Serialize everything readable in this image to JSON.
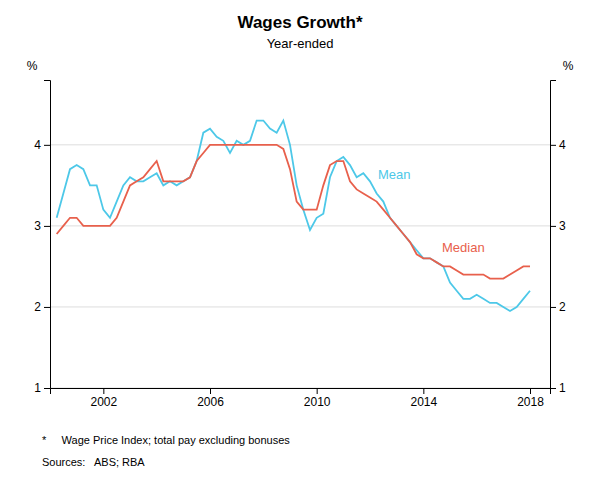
{
  "chart_data": {
    "type": "line",
    "title": "Wages Growth*",
    "subtitle": "Year-ended",
    "ylabel": "%",
    "y2label": "%",
    "footnote": "*     Wage Price Index; total pay excluding bonuses",
    "source": "Sources:   ABS; RBA",
    "xlim": [
      2000.0,
      2018.75
    ],
    "xticks": [
      2002,
      2006,
      2010,
      2014,
      2018
    ],
    "ylim": [
      1,
      4.8
    ],
    "yticks": [
      1,
      2,
      3,
      4
    ],
    "y2lim": [
      1,
      4.8
    ],
    "y2ticks": [
      1,
      2,
      3,
      4
    ],
    "grid": true,
    "x": [
      2000.25,
      2000.5,
      2000.75,
      2001.0,
      2001.25,
      2001.5,
      2001.75,
      2002.0,
      2002.25,
      2002.5,
      2002.75,
      2003.0,
      2003.25,
      2003.5,
      2003.75,
      2004.0,
      2004.25,
      2004.5,
      2004.75,
      2005.0,
      2005.25,
      2005.5,
      2005.75,
      2006.0,
      2006.25,
      2006.5,
      2006.75,
      2007.0,
      2007.25,
      2007.5,
      2007.75,
      2008.0,
      2008.25,
      2008.5,
      2008.75,
      2009.0,
      2009.25,
      2009.5,
      2009.75,
      2010.0,
      2010.25,
      2010.5,
      2010.75,
      2011.0,
      2011.25,
      2011.5,
      2011.75,
      2012.0,
      2012.25,
      2012.5,
      2012.75,
      2013.0,
      2013.25,
      2013.5,
      2013.75,
      2014.0,
      2014.25,
      2014.5,
      2014.75,
      2015.0,
      2015.25,
      2015.5,
      2015.75,
      2016.0,
      2016.25,
      2016.5,
      2016.75,
      2017.0,
      2017.25,
      2017.5,
      2017.75,
      2018.0
    ],
    "series": [
      {
        "name": "Mean",
        "color": "#4DC8E8",
        "values": [
          3.1,
          3.4,
          3.7,
          3.75,
          3.7,
          3.5,
          3.5,
          3.2,
          3.1,
          3.3,
          3.5,
          3.6,
          3.55,
          3.55,
          3.6,
          3.65,
          3.5,
          3.55,
          3.5,
          3.55,
          3.6,
          3.8,
          4.15,
          4.2,
          4.1,
          4.05,
          3.9,
          4.05,
          4.0,
          4.05,
          4.3,
          4.3,
          4.2,
          4.15,
          4.3,
          4.0,
          3.5,
          3.2,
          2.95,
          3.1,
          3.15,
          3.6,
          3.8,
          3.85,
          3.75,
          3.6,
          3.65,
          3.55,
          3.4,
          3.3,
          3.1,
          3.0,
          2.9,
          2.8,
          2.7,
          2.6,
          2.6,
          2.55,
          2.5,
          2.3,
          2.2,
          2.1,
          2.1,
          2.15,
          2.1,
          2.05,
          2.05,
          2.0,
          1.95,
          2.0,
          2.1,
          2.2
        ]
      },
      {
        "name": "Median",
        "color": "#E8604C",
        "values": [
          2.9,
          3.0,
          3.1,
          3.1,
          3.0,
          3.0,
          3.0,
          3.0,
          3.0,
          3.1,
          3.3,
          3.5,
          3.55,
          3.6,
          3.7,
          3.8,
          3.55,
          3.55,
          3.55,
          3.55,
          3.6,
          3.8,
          3.9,
          4.0,
          4.0,
          4.0,
          4.0,
          4.0,
          4.0,
          4.0,
          4.0,
          4.0,
          4.0,
          4.0,
          3.95,
          3.7,
          3.3,
          3.2,
          3.2,
          3.2,
          3.5,
          3.75,
          3.8,
          3.8,
          3.55,
          3.45,
          3.4,
          3.35,
          3.3,
          3.2,
          3.1,
          3.0,
          2.9,
          2.8,
          2.65,
          2.6,
          2.6,
          2.55,
          2.5,
          2.5,
          2.45,
          2.4,
          2.4,
          2.4,
          2.4,
          2.35,
          2.35,
          2.35,
          2.4,
          2.45,
          2.5,
          2.5
        ]
      }
    ],
    "annotations": [
      {
        "text": "Mean",
        "x": 2012.3,
        "y": 3.62
      },
      {
        "text": "Median",
        "x": 2014.7,
        "y": 2.72
      }
    ]
  }
}
